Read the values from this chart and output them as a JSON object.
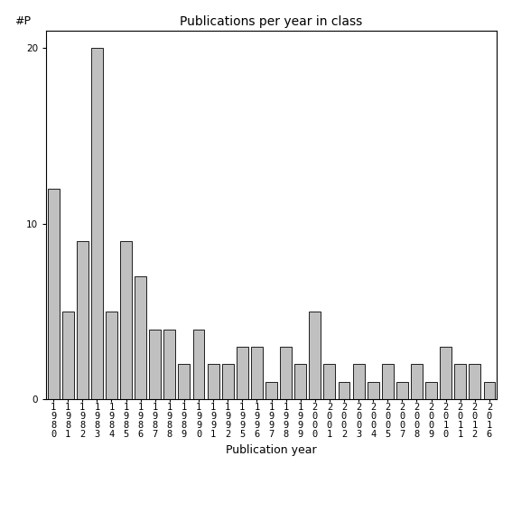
{
  "title": "Publications per year in class",
  "xlabel": "Publication year",
  "ylabel": "#P",
  "bar_color": "#c0c0c0",
  "bar_edgecolor": "#000000",
  "background_color": "#ffffff",
  "ylim": [
    0,
    21
  ],
  "yticks": [
    0,
    10,
    20
  ],
  "categories": [
    "1980",
    "1981",
    "1982",
    "1983",
    "1984",
    "1985",
    "1986",
    "1987",
    "1988",
    "1989",
    "1990",
    "1991",
    "1992",
    "1995",
    "1996",
    "1997",
    "1998",
    "1999",
    "2000",
    "2001",
    "2002",
    "2003",
    "2004",
    "2005",
    "2007",
    "2008",
    "2009",
    "2010",
    "2011",
    "2012",
    "2016"
  ],
  "values": [
    12,
    5,
    9,
    20,
    5,
    9,
    7,
    4,
    4,
    2,
    4,
    2,
    2,
    3,
    3,
    1,
    3,
    2,
    5,
    2,
    1,
    2,
    1,
    2,
    1,
    2,
    1,
    3,
    2,
    2,
    1
  ],
  "title_fontsize": 10,
  "axis_fontsize": 9,
  "tick_fontsize": 7.5
}
